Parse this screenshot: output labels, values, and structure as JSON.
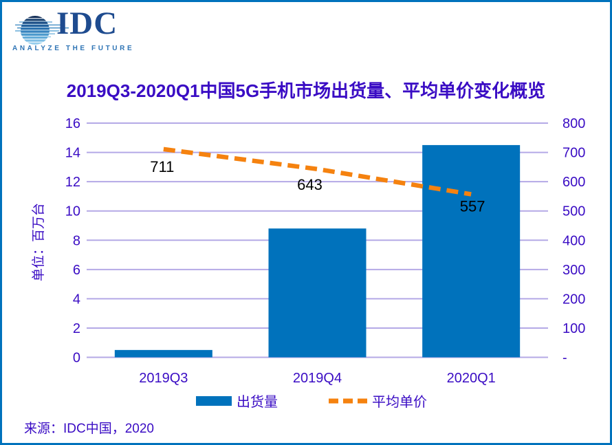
{
  "brand": {
    "logo_text": "IDC",
    "tagline": "ANALYZE THE FUTURE"
  },
  "title": "2019Q3-2020Q1中国5G手机市场出货量、平均单价变化概览",
  "source": "来源：IDC中国，2020",
  "legend": {
    "bars_label": "出货量",
    "line_label": "平均单价"
  },
  "colors": {
    "bar": "#0072BC",
    "line": "#F5820F",
    "grid": "#B4A9E6",
    "purple": "#3A0CC4",
    "black": "#000000",
    "border": "#0072BC",
    "logo_navy": "#1E4B8F",
    "logo_light": "#2E74B5"
  },
  "chart_data": {
    "type": "bar",
    "subtype": "bar+line combo, secondary axis",
    "title": "2019Q3-2020Q1中国5G手机市场出货量、平均单价变化概览",
    "categories": [
      "2019Q3",
      "2019Q4",
      "2020Q1"
    ],
    "series": [
      {
        "name": "出货量",
        "type": "bar",
        "axis": "left",
        "values": [
          0.5,
          8.8,
          14.5
        ]
      },
      {
        "name": "平均单价",
        "type": "line",
        "style": "dashed",
        "axis": "right",
        "values": [
          711,
          643,
          557
        ]
      }
    ],
    "data_labels": [
      "711",
      "643",
      "557"
    ],
    "left_axis": {
      "label": "单位：百万台",
      "min": 0,
      "max": 16,
      "step": 2,
      "ticks": [
        0,
        2,
        4,
        6,
        8,
        10,
        12,
        14,
        16
      ]
    },
    "right_axis": {
      "min": 0,
      "max": 800,
      "step": 100,
      "tick_labels": [
        "-",
        "100",
        "200",
        "300",
        "400",
        "500",
        "600",
        "700",
        "800"
      ]
    },
    "grid": "horizontal",
    "legend_position": "bottom"
  }
}
